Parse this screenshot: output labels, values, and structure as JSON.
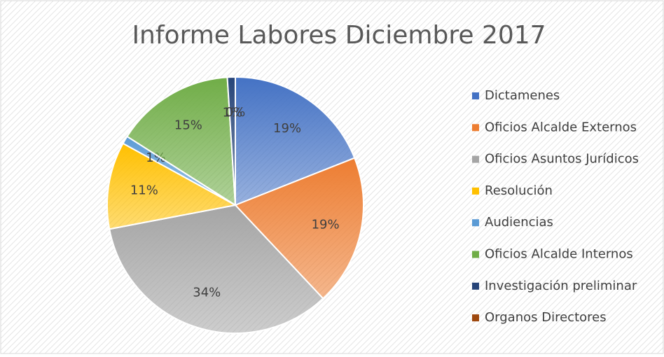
{
  "chart_data": {
    "type": "pie",
    "title": "Informe Labores Diciembre 2017",
    "categories": [
      "Dictamenes",
      "Oficios Alcalde Externos",
      "Oficios Asuntos Jurídicos",
      "Resolución",
      "Audiencias",
      "Oficios Alcalde Internos",
      "Investigación preliminar",
      "Organos Directores"
    ],
    "values": [
      19,
      19,
      34,
      11,
      1,
      15,
      1,
      0
    ],
    "value_labels": [
      "19%",
      "19%",
      "34%",
      "11%",
      "1%",
      "15%",
      "1%",
      "0%"
    ],
    "colors": [
      "#4472c4",
      "#ed7d31",
      "#a5a5a5",
      "#ffc000",
      "#5b9bd5",
      "#70ad47",
      "#264478",
      "#9e480e"
    ],
    "legend": "right"
  }
}
